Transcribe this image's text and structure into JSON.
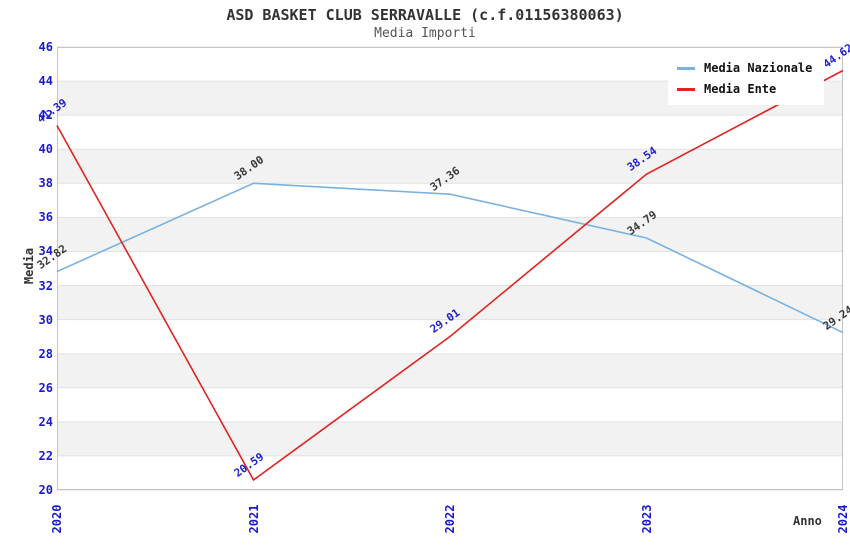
{
  "chart_data": {
    "type": "line",
    "title": "ASD BASKET CLUB SERRAVALLE (c.f.01156380063)",
    "subtitle": "Media Importi",
    "xlabel": "Anno",
    "ylabel": "Media",
    "categories": [
      "2020",
      "2021",
      "2022",
      "2023",
      "2024"
    ],
    "series": [
      {
        "name": "Media Nazionale",
        "color": "#79b1e1",
        "values": [
          32.82,
          38.0,
          37.36,
          34.79,
          29.24
        ],
        "point_labels": [
          "32.82",
          "38.00",
          "37.36",
          "34.79",
          "29.24"
        ],
        "label_color": "#3a3a3a"
      },
      {
        "name": "Media Ente",
        "color": "#e32222",
        "values": [
          41.39,
          20.59,
          29.01,
          38.54,
          44.62
        ],
        "point_labels": [
          "41.39",
          "20.59",
          "29.01",
          "38.54",
          "44.62"
        ],
        "label_color": "#2222cc"
      }
    ],
    "ylim": [
      20,
      46
    ],
    "y_ticks": [
      20,
      22,
      24,
      26,
      28,
      30,
      32,
      34,
      36,
      38,
      40,
      42,
      44,
      46
    ],
    "grid": "horizontal",
    "legend_position": "top-right",
    "axis_tick_color": "#1a1acc",
    "grid_color": "#e2e2e2",
    "band_colors": [
      "#ffffff",
      "#f2f2f2"
    ],
    "plot_border_color": "#c4c4c4"
  }
}
